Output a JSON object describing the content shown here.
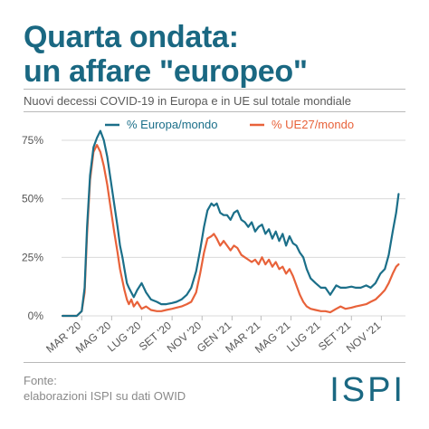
{
  "header": {
    "title_line1": "Quarta ondata:",
    "title_line2": "un affare \"europeo\"",
    "subtitle": "Nuovi decessi COVID-19 in Europa e in UE sul totale mondiale"
  },
  "footer": {
    "source_label": "Fonte:",
    "source_text": "elaborazioni ISPI su dati OWID",
    "logo": "ISPI"
  },
  "colors": {
    "title": "#1a6882",
    "europe_line": "#1b6f89",
    "eu27_line": "#e8623a",
    "grid": "#d9d9d9",
    "axis_text": "#555555"
  },
  "chart_data": {
    "type": "line",
    "title": "",
    "xlabel": "",
    "ylabel": "",
    "ylim": [
      0,
      80
    ],
    "yticks": [
      0,
      25,
      50,
      75
    ],
    "ytick_labels": [
      "0%",
      "25%",
      "50%",
      "75%"
    ],
    "xlim": [
      "2020-01-20",
      "2021-12-20"
    ],
    "xticks": [
      "2020-03-01",
      "2020-05-01",
      "2020-07-01",
      "2020-09-01",
      "2020-11-01",
      "2021-01-01",
      "2021-03-01",
      "2021-05-01",
      "2021-07-01",
      "2021-09-01",
      "2021-11-01"
    ],
    "xtick_labels": [
      "MAR '20",
      "MAG '20",
      "LUG '20",
      "SET '20",
      "NOV '20",
      "GEN '21",
      "MAR '21",
      "MAG '21",
      "LUG '21",
      "SET '21",
      "NOV '21"
    ],
    "grid": true,
    "legend_position": "top",
    "series": [
      {
        "name": "% Europa/mondo",
        "color": "#1b6f89",
        "x": [
          "2020-01-22",
          "2020-02-20",
          "2020-03-01",
          "2020-03-07",
          "2020-03-12",
          "2020-03-18",
          "2020-03-25",
          "2020-04-01",
          "2020-04-08",
          "2020-04-15",
          "2020-04-22",
          "2020-04-29",
          "2020-05-06",
          "2020-05-13",
          "2020-05-18",
          "2020-05-23",
          "2020-05-27",
          "2020-06-01",
          "2020-06-05",
          "2020-06-10",
          "2020-06-15",
          "2020-06-22",
          "2020-07-01",
          "2020-07-10",
          "2020-07-20",
          "2020-08-01",
          "2020-08-10",
          "2020-08-20",
          "2020-09-01",
          "2020-09-10",
          "2020-09-20",
          "2020-10-01",
          "2020-10-10",
          "2020-10-20",
          "2020-10-28",
          "2020-11-05",
          "2020-11-12",
          "2020-11-20",
          "2020-11-25",
          "2020-12-01",
          "2020-12-08",
          "2020-12-15",
          "2020-12-22",
          "2020-12-29",
          "2021-01-05",
          "2021-01-12",
          "2021-01-20",
          "2021-01-27",
          "2021-02-03",
          "2021-02-10",
          "2021-02-17",
          "2021-02-24",
          "2021-03-03",
          "2021-03-10",
          "2021-03-17",
          "2021-03-24",
          "2021-03-31",
          "2021-04-07",
          "2021-04-14",
          "2021-04-21",
          "2021-04-28",
          "2021-05-05",
          "2021-05-12",
          "2021-05-19",
          "2021-05-26",
          "2021-06-02",
          "2021-06-10",
          "2021-06-20",
          "2021-07-01",
          "2021-07-10",
          "2021-07-20",
          "2021-08-01",
          "2021-08-10",
          "2021-08-20",
          "2021-09-01",
          "2021-09-10",
          "2021-09-20",
          "2021-10-01",
          "2021-10-10",
          "2021-10-20",
          "2021-10-30",
          "2021-11-08",
          "2021-11-16",
          "2021-11-24",
          "2021-12-01",
          "2021-12-06"
        ],
        "values": [
          0,
          0,
          2,
          12,
          38,
          60,
          72,
          76,
          79,
          75,
          68,
          58,
          48,
          38,
          30,
          25,
          20,
          14,
          12,
          10,
          8,
          11,
          14,
          10,
          7,
          6,
          5,
          5,
          5.5,
          6,
          7,
          9,
          12,
          19,
          28,
          38,
          45,
          48,
          47,
          48,
          44,
          43,
          43,
          41,
          44,
          45,
          41,
          40,
          38,
          40,
          36,
          38,
          39,
          35,
          37,
          33,
          36,
          32,
          35,
          30,
          34,
          31,
          30,
          27,
          25,
          20,
          16,
          14,
          12,
          12,
          9,
          13,
          12,
          12,
          12.5,
          12,
          12,
          13,
          12,
          14,
          18,
          20,
          26,
          36,
          44,
          52
        ]
      },
      {
        "name": "% UE27/mondo",
        "color": "#e8623a",
        "x": [
          "2020-01-22",
          "2020-02-20",
          "2020-03-01",
          "2020-03-07",
          "2020-03-12",
          "2020-03-18",
          "2020-03-25",
          "2020-04-01",
          "2020-04-08",
          "2020-04-15",
          "2020-04-22",
          "2020-04-29",
          "2020-05-06",
          "2020-05-13",
          "2020-05-18",
          "2020-05-23",
          "2020-05-27",
          "2020-06-01",
          "2020-06-05",
          "2020-06-10",
          "2020-06-15",
          "2020-06-22",
          "2020-07-01",
          "2020-07-10",
          "2020-07-20",
          "2020-08-01",
          "2020-08-10",
          "2020-08-20",
          "2020-09-01",
          "2020-09-10",
          "2020-09-20",
          "2020-10-01",
          "2020-10-10",
          "2020-10-20",
          "2020-10-28",
          "2020-11-05",
          "2020-11-12",
          "2020-11-20",
          "2020-11-25",
          "2020-12-01",
          "2020-12-08",
          "2020-12-15",
          "2020-12-22",
          "2020-12-29",
          "2021-01-05",
          "2021-01-12",
          "2021-01-20",
          "2021-01-27",
          "2021-02-03",
          "2021-02-10",
          "2021-02-17",
          "2021-02-24",
          "2021-03-03",
          "2021-03-10",
          "2021-03-17",
          "2021-03-24",
          "2021-03-31",
          "2021-04-07",
          "2021-04-14",
          "2021-04-21",
          "2021-04-28",
          "2021-05-05",
          "2021-05-12",
          "2021-05-19",
          "2021-05-26",
          "2021-06-02",
          "2021-06-10",
          "2021-06-20",
          "2021-07-01",
          "2021-07-10",
          "2021-07-20",
          "2021-08-01",
          "2021-08-10",
          "2021-08-20",
          "2021-09-01",
          "2021-09-10",
          "2021-09-20",
          "2021-10-01",
          "2021-10-10",
          "2021-10-20",
          "2021-10-30",
          "2021-11-08",
          "2021-11-16",
          "2021-11-24",
          "2021-12-01",
          "2021-12-06"
        ],
        "values": [
          0,
          0,
          2,
          10,
          35,
          58,
          70,
          73,
          70,
          64,
          56,
          46,
          36,
          27,
          20,
          15,
          11,
          7,
          5,
          7,
          4,
          6,
          3,
          4,
          2.5,
          2,
          2,
          2.5,
          3,
          3.5,
          4,
          5,
          6,
          10,
          18,
          27,
          33,
          34,
          35,
          33,
          30,
          32,
          30,
          28,
          30,
          29,
          26,
          25,
          24,
          23,
          24,
          22,
          25,
          22,
          24,
          21,
          23,
          20,
          21,
          18,
          20,
          17,
          13,
          9,
          6,
          4,
          3,
          2.5,
          2,
          2,
          1.5,
          3,
          4,
          3,
          3.5,
          4,
          4.5,
          5,
          6,
          7,
          9,
          11,
          14,
          18,
          21,
          22
        ]
      }
    ]
  }
}
